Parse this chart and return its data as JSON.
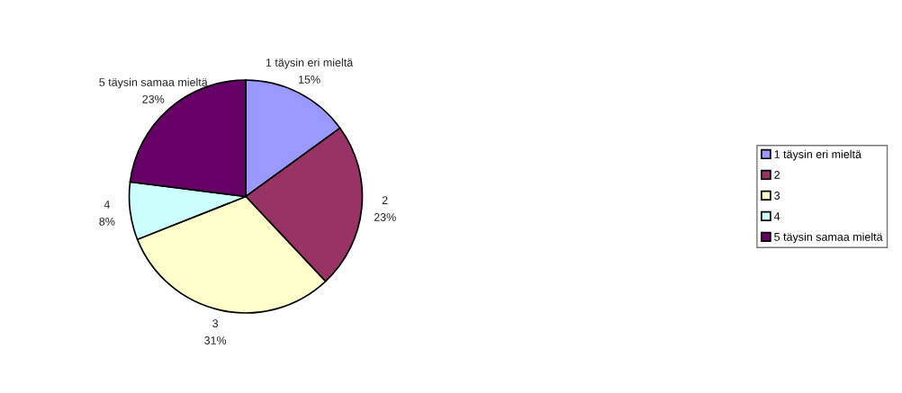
{
  "chart_data": {
    "type": "pie",
    "categories": [
      "1 täysin eri mieltä",
      "2",
      "3",
      "4",
      "5 täysin samaa mieltä"
    ],
    "values": [
      15,
      23,
      31,
      8,
      23
    ],
    "value_labels": [
      "15%",
      "23%",
      "31%",
      "8%",
      "23%"
    ],
    "colors": [
      "#9999ff",
      "#993366",
      "#ffffcc",
      "#ccffff",
      "#660066"
    ],
    "legend": "right"
  }
}
